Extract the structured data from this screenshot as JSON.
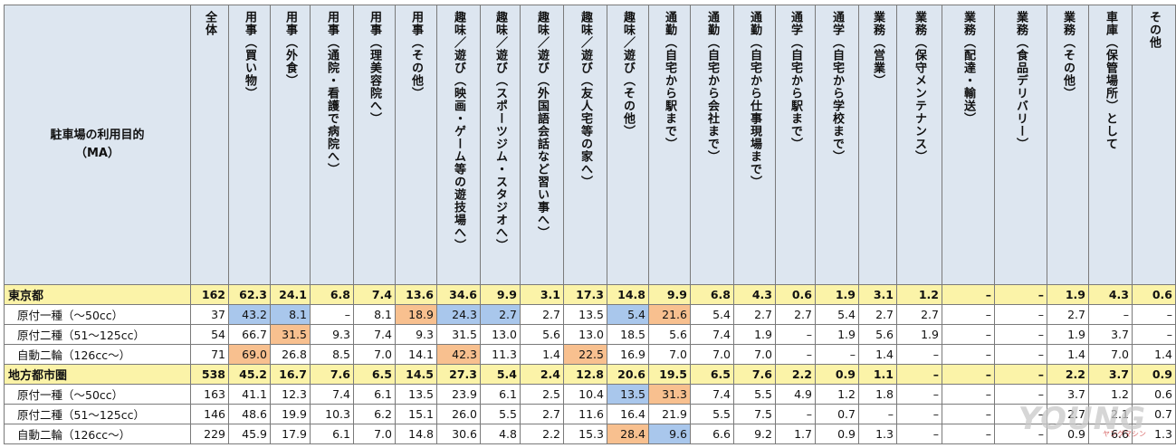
{
  "corner_label": "駐車場の利用目的\n（MA）",
  "columns": [
    "全体",
    "用事（買い物）",
    "用事（外食）",
    "用事（通院・看護で病院へ）",
    "用事（理美容院へ）",
    "用事（その他）",
    "趣味／遊び（映画・ゲーム等の遊技場へ）",
    "趣味／遊び（スポーツジム・スタジオへ）",
    "趣味／遊び（外国語会話など習い事へ）",
    "趣味／遊び（友人宅等の家へ）",
    "趣味／遊び（その他）",
    "通勤（自宅から駅まで）",
    "通勤（自宅から会社まで）",
    "通勤（自宅から仕事現場まで）",
    "通学（自宅から駅まで）",
    "通学（自宅から学校まで）",
    "業務（営業）",
    "業務（保守メンテナンス）",
    "業務（配達・輸送）",
    "業務（食品デリバリー）",
    "業務（その他）",
    "車庫（保管場所）として",
    "その他"
  ],
  "rows": [
    {
      "label": "東京都",
      "type": "region",
      "cells": [
        "162",
        "62.3",
        "24.1",
        "6.8",
        "7.4",
        "13.6",
        "34.6",
        "9.9",
        "3.1",
        "17.3",
        "14.8",
        "9.9",
        "6.8",
        "4.3",
        "0.6",
        "1.9",
        "3.1",
        "1.2",
        "–",
        "–",
        "1.9",
        "4.3",
        "0.6"
      ]
    },
    {
      "label": "原付一種（～50cc）",
      "type": "sub",
      "cells": [
        "37",
        "43.2",
        "8.1",
        "–",
        "8.1",
        "18.9",
        "24.3",
        "2.7",
        "2.7",
        "13.5",
        "5.4",
        "21.6",
        "5.4",
        "2.7",
        "2.7",
        "5.4",
        "2.7",
        "2.7",
        "–",
        "–",
        "2.7",
        "–",
        "–"
      ]
    },
    {
      "label": "原付二種（51～125cc）",
      "type": "sub",
      "cells": [
        "54",
        "66.7",
        "31.5",
        "9.3",
        "7.4",
        "9.3",
        "31.5",
        "13.0",
        "5.6",
        "13.0",
        "18.5",
        "5.6",
        "7.4",
        "1.9",
        "–",
        "1.9",
        "5.6",
        "1.9",
        "–",
        "–",
        "1.9",
        "3.7",
        "–"
      ]
    },
    {
      "label": "自動二輪（126cc～）",
      "type": "sub",
      "cells": [
        "71",
        "69.0",
        "26.8",
        "8.5",
        "7.0",
        "14.1",
        "42.3",
        "11.3",
        "1.4",
        "22.5",
        "16.9",
        "7.0",
        "7.0",
        "7.0",
        "–",
        "–",
        "1.4",
        "–",
        "–",
        "–",
        "1.4",
        "7.0",
        "1.4"
      ]
    },
    {
      "label": "地方都市圏",
      "type": "region",
      "cells": [
        "538",
        "45.2",
        "16.7",
        "7.6",
        "6.5",
        "14.5",
        "27.3",
        "5.4",
        "2.4",
        "12.8",
        "20.6",
        "19.5",
        "6.5",
        "7.6",
        "2.2",
        "0.9",
        "1.1",
        "–",
        "–",
        "–",
        "2.2",
        "3.7",
        "0.9"
      ]
    },
    {
      "label": "原付一種（～50cc）",
      "type": "sub",
      "cells": [
        "163",
        "41.1",
        "12.3",
        "7.4",
        "6.1",
        "13.5",
        "23.9",
        "6.1",
        "2.5",
        "10.4",
        "13.5",
        "31.3",
        "7.4",
        "5.5",
        "4.9",
        "1.2",
        "1.8",
        "–",
        "–",
        "–",
        "3.7",
        "1.2",
        "0.6"
      ]
    },
    {
      "label": "原付二種（51～125cc）",
      "type": "sub",
      "cells": [
        "146",
        "48.6",
        "19.9",
        "10.3",
        "6.2",
        "15.1",
        "26.0",
        "5.5",
        "2.7",
        "11.6",
        "16.4",
        "21.9",
        "5.5",
        "7.5",
        "–",
        "0.7",
        "–",
        "–",
        "–",
        "–",
        "2.7",
        "2.1",
        "0.7"
      ]
    },
    {
      "label": "自動二輪（126cc～）",
      "type": "sub",
      "cells": [
        "229",
        "45.9",
        "17.9",
        "6.1",
        "7.0",
        "14.8",
        "30.6",
        "4.8",
        "2.2",
        "15.3",
        "28.4",
        "9.6",
        "6.6",
        "9.2",
        "1.7",
        "0.9",
        "1.3",
        "–",
        "–",
        "–",
        "0.9",
        "6.6",
        "1.3"
      ]
    }
  ],
  "highlights": {
    "1-1": "blue",
    "1-2": "blue",
    "1-5": "orange",
    "1-6": "blue",
    "1-7": "blue",
    "1-10": "blue",
    "1-11": "orange",
    "2-2": "orange",
    "3-1": "orange",
    "3-6": "orange",
    "3-9": "orange",
    "5-10": "blue",
    "5-11": "orange",
    "7-10": "orange",
    "7-11": "blue"
  },
  "colors": {
    "header_bg": "#dde6f0",
    "region_bg": "#fbf3a8",
    "blue": "#a9c7ec",
    "orange": "#f8c08f"
  },
  "logo": {
    "text": "YOUNG",
    "sub": "ヤングマシン"
  }
}
